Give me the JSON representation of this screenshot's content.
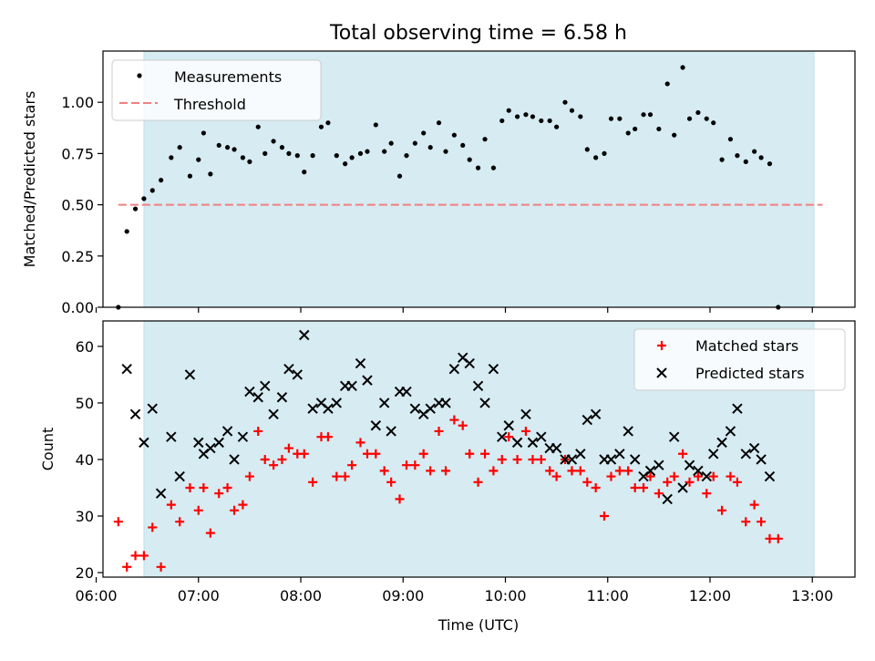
{
  "figure": {
    "title": "Total observing time = 6.58 h",
    "xlabel": "Time (UTC)"
  },
  "colors": {
    "shade": "#add8e6",
    "measurement": "#000000",
    "threshold": "#f08080",
    "matched": "#ff0000",
    "predicted": "#000000"
  },
  "chart_data": [
    {
      "type": "scatter",
      "panel": "top",
      "ylabel": "Matched/Predicted stars",
      "xlim": [
        "06:04",
        "13:25"
      ],
      "ylim": [
        0,
        1.25
      ],
      "x_ticks": [
        "06:00",
        "07:00",
        "08:00",
        "09:00",
        "10:00",
        "11:00",
        "12:00",
        "13:00"
      ],
      "y_ticks": [
        "0.00",
        "0.25",
        "0.50",
        "0.75",
        "1.00"
      ],
      "shaded_span": [
        "06:28",
        "13:01"
      ],
      "legend": {
        "placement": "top-left",
        "entries": [
          "Measurements",
          "Threshold"
        ]
      },
      "threshold": {
        "name": "Threshold",
        "y": 0.5,
        "x_range": [
          "06:13",
          "13:06"
        ]
      },
      "series": [
        {
          "name": "Measurements",
          "marker": "dot",
          "points": [
            [
              "06:13",
              0.0
            ],
            [
              "06:18",
              0.37
            ],
            [
              "06:23",
              0.48
            ],
            [
              "06:28",
              0.53
            ],
            [
              "06:33",
              0.57
            ],
            [
              "06:38",
              0.62
            ],
            [
              "06:44",
              0.73
            ],
            [
              "06:49",
              0.78
            ],
            [
              "06:55",
              0.64
            ],
            [
              "07:00",
              0.72
            ],
            [
              "07:03",
              0.85
            ],
            [
              "07:07",
              0.65
            ],
            [
              "07:12",
              0.79
            ],
            [
              "07:17",
              0.78
            ],
            [
              "07:21",
              0.77
            ],
            [
              "07:26",
              0.73
            ],
            [
              "07:30",
              0.71
            ],
            [
              "07:35",
              0.88
            ],
            [
              "07:39",
              0.75
            ],
            [
              "07:44",
              0.81
            ],
            [
              "07:49",
              0.78
            ],
            [
              "07:53",
              0.75
            ],
            [
              "07:58",
              0.74
            ],
            [
              "08:02",
              0.66
            ],
            [
              "08:07",
              0.74
            ],
            [
              "08:12",
              0.88
            ],
            [
              "08:16",
              0.9
            ],
            [
              "08:21",
              0.74
            ],
            [
              "08:26",
              0.7
            ],
            [
              "08:30",
              0.73
            ],
            [
              "08:35",
              0.75
            ],
            [
              "08:39",
              0.76
            ],
            [
              "08:44",
              0.89
            ],
            [
              "08:49",
              0.76
            ],
            [
              "08:53",
              0.8
            ],
            [
              "08:58",
              0.64
            ],
            [
              "09:02",
              0.74
            ],
            [
              "09:07",
              0.8
            ],
            [
              "09:12",
              0.85
            ],
            [
              "09:16",
              0.78
            ],
            [
              "09:21",
              0.9
            ],
            [
              "09:25",
              0.76
            ],
            [
              "09:30",
              0.84
            ],
            [
              "09:35",
              0.79
            ],
            [
              "09:39",
              0.72
            ],
            [
              "09:44",
              0.68
            ],
            [
              "09:48",
              0.82
            ],
            [
              "09:53",
              0.68
            ],
            [
              "09:58",
              0.91
            ],
            [
              "10:02",
              0.96
            ],
            [
              "10:07",
              0.93
            ],
            [
              "10:12",
              0.94
            ],
            [
              "10:16",
              0.93
            ],
            [
              "10:21",
              0.91
            ],
            [
              "10:26",
              0.91
            ],
            [
              "10:30",
              0.88
            ],
            [
              "10:35",
              1.0
            ],
            [
              "10:39",
              0.96
            ],
            [
              "10:44",
              0.93
            ],
            [
              "10:48",
              0.77
            ],
            [
              "10:53",
              0.73
            ],
            [
              "10:58",
              0.75
            ],
            [
              "11:02",
              0.92
            ],
            [
              "11:07",
              0.92
            ],
            [
              "11:12",
              0.85
            ],
            [
              "11:16",
              0.87
            ],
            [
              "11:21",
              0.94
            ],
            [
              "11:25",
              0.94
            ],
            [
              "11:30",
              0.87
            ],
            [
              "11:35",
              1.09
            ],
            [
              "11:39",
              0.84
            ],
            [
              "11:44",
              1.17
            ],
            [
              "11:48",
              0.92
            ],
            [
              "11:53",
              0.95
            ],
            [
              "11:58",
              0.92
            ],
            [
              "12:02",
              0.9
            ],
            [
              "12:07",
              0.72
            ],
            [
              "12:12",
              0.82
            ],
            [
              "12:16",
              0.74
            ],
            [
              "12:21",
              0.71
            ],
            [
              "12:26",
              0.76
            ],
            [
              "12:30",
              0.73
            ],
            [
              "12:35",
              0.7
            ],
            [
              "12:40",
              0.0
            ]
          ]
        }
      ]
    },
    {
      "type": "scatter",
      "panel": "bottom",
      "ylabel": "Count",
      "xlim": [
        "06:04",
        "13:25"
      ],
      "ylim": [
        19.2,
        64.5
      ],
      "x_ticks": [
        "06:00",
        "07:00",
        "08:00",
        "09:00",
        "10:00",
        "11:00",
        "12:00",
        "13:00"
      ],
      "y_ticks": [
        "20",
        "30",
        "40",
        "50",
        "60"
      ],
      "shaded_span": [
        "06:28",
        "13:01"
      ],
      "legend": {
        "placement": "top-right",
        "entries": [
          "Matched stars",
          "Predicted stars"
        ]
      },
      "series": [
        {
          "name": "Matched stars",
          "marker": "plus",
          "points": [
            [
              "06:13",
              29
            ],
            [
              "06:18",
              21
            ],
            [
              "06:23",
              23
            ],
            [
              "06:28",
              23
            ],
            [
              "06:33",
              28
            ],
            [
              "06:38",
              21
            ],
            [
              "06:44",
              32
            ],
            [
              "06:49",
              29
            ],
            [
              "06:55",
              35
            ],
            [
              "07:00",
              31
            ],
            [
              "07:03",
              35
            ],
            [
              "07:07",
              27
            ],
            [
              "07:12",
              34
            ],
            [
              "07:17",
              35
            ],
            [
              "07:21",
              31
            ],
            [
              "07:26",
              32
            ],
            [
              "07:30",
              37
            ],
            [
              "07:35",
              45
            ],
            [
              "07:39",
              40
            ],
            [
              "07:44",
              39
            ],
            [
              "07:49",
              40
            ],
            [
              "07:53",
              42
            ],
            [
              "07:58",
              41
            ],
            [
              "08:02",
              41
            ],
            [
              "08:07",
              36
            ],
            [
              "08:12",
              44
            ],
            [
              "08:16",
              44
            ],
            [
              "08:21",
              37
            ],
            [
              "08:26",
              37
            ],
            [
              "08:30",
              39
            ],
            [
              "08:35",
              43
            ],
            [
              "08:39",
              41
            ],
            [
              "08:44",
              41
            ],
            [
              "08:49",
              38
            ],
            [
              "08:53",
              36
            ],
            [
              "08:58",
              33
            ],
            [
              "09:02",
              39
            ],
            [
              "09:07",
              39
            ],
            [
              "09:12",
              41
            ],
            [
              "09:16",
              38
            ],
            [
              "09:21",
              45
            ],
            [
              "09:25",
              38
            ],
            [
              "09:30",
              47
            ],
            [
              "09:35",
              46
            ],
            [
              "09:39",
              41
            ],
            [
              "09:44",
              36
            ],
            [
              "09:48",
              41
            ],
            [
              "09:53",
              38
            ],
            [
              "09:58",
              40
            ],
            [
              "10:02",
              44
            ],
            [
              "10:07",
              40
            ],
            [
              "10:12",
              45
            ],
            [
              "10:16",
              40
            ],
            [
              "10:21",
              40
            ],
            [
              "10:26",
              38
            ],
            [
              "10:30",
              37
            ],
            [
              "10:35",
              40
            ],
            [
              "10:39",
              38
            ],
            [
              "10:44",
              38
            ],
            [
              "10:48",
              36
            ],
            [
              "10:53",
              35
            ],
            [
              "10:58",
              30
            ],
            [
              "11:02",
              37
            ],
            [
              "11:07",
              38
            ],
            [
              "11:12",
              38
            ],
            [
              "11:16",
              35
            ],
            [
              "11:21",
              35
            ],
            [
              "11:25",
              37
            ],
            [
              "11:30",
              34
            ],
            [
              "11:35",
              36
            ],
            [
              "11:39",
              37
            ],
            [
              "11:44",
              41
            ],
            [
              "11:48",
              36
            ],
            [
              "11:53",
              37
            ],
            [
              "11:58",
              34
            ],
            [
              "12:02",
              37
            ],
            [
              "12:07",
              31
            ],
            [
              "12:12",
              37
            ],
            [
              "12:16",
              36
            ],
            [
              "12:21",
              29
            ],
            [
              "12:26",
              32
            ],
            [
              "12:30",
              29
            ],
            [
              "12:35",
              26
            ],
            [
              "12:40",
              26
            ]
          ]
        },
        {
          "name": "Predicted stars",
          "marker": "x",
          "points": [
            [
              "06:18",
              56
            ],
            [
              "06:23",
              48
            ],
            [
              "06:28",
              43
            ],
            [
              "06:33",
              49
            ],
            [
              "06:38",
              34
            ],
            [
              "06:44",
              44
            ],
            [
              "06:49",
              37
            ],
            [
              "06:55",
              55
            ],
            [
              "07:00",
              43
            ],
            [
              "07:03",
              41
            ],
            [
              "07:07",
              42
            ],
            [
              "07:12",
              43
            ],
            [
              "07:17",
              45
            ],
            [
              "07:21",
              40
            ],
            [
              "07:26",
              44
            ],
            [
              "07:30",
              52
            ],
            [
              "07:35",
              51
            ],
            [
              "07:39",
              53
            ],
            [
              "07:44",
              48
            ],
            [
              "07:49",
              51
            ],
            [
              "07:53",
              56
            ],
            [
              "07:58",
              55
            ],
            [
              "08:02",
              62
            ],
            [
              "08:07",
              49
            ],
            [
              "08:12",
              50
            ],
            [
              "08:16",
              49
            ],
            [
              "08:21",
              50
            ],
            [
              "08:26",
              53
            ],
            [
              "08:30",
              53
            ],
            [
              "08:35",
              57
            ],
            [
              "08:39",
              54
            ],
            [
              "08:44",
              46
            ],
            [
              "08:49",
              50
            ],
            [
              "08:53",
              45
            ],
            [
              "08:58",
              52
            ],
            [
              "09:02",
              52
            ],
            [
              "09:07",
              49
            ],
            [
              "09:12",
              48
            ],
            [
              "09:16",
              49
            ],
            [
              "09:21",
              50
            ],
            [
              "09:25",
              50
            ],
            [
              "09:30",
              56
            ],
            [
              "09:35",
              58
            ],
            [
              "09:39",
              57
            ],
            [
              "09:44",
              53
            ],
            [
              "09:48",
              50
            ],
            [
              "09:53",
              56
            ],
            [
              "09:58",
              44
            ],
            [
              "10:02",
              46
            ],
            [
              "10:07",
              43
            ],
            [
              "10:12",
              48
            ],
            [
              "10:16",
              43
            ],
            [
              "10:21",
              44
            ],
            [
              "10:26",
              42
            ],
            [
              "10:30",
              42
            ],
            [
              "10:35",
              40
            ],
            [
              "10:39",
              40
            ],
            [
              "10:44",
              41
            ],
            [
              "10:48",
              47
            ],
            [
              "10:53",
              48
            ],
            [
              "10:58",
              40
            ],
            [
              "11:02",
              40
            ],
            [
              "11:07",
              41
            ],
            [
              "11:12",
              45
            ],
            [
              "11:16",
              40
            ],
            [
              "11:21",
              37
            ],
            [
              "11:25",
              38
            ],
            [
              "11:30",
              39
            ],
            [
              "11:35",
              33
            ],
            [
              "11:39",
              44
            ],
            [
              "11:44",
              35
            ],
            [
              "11:48",
              39
            ],
            [
              "11:53",
              38
            ],
            [
              "11:58",
              37
            ],
            [
              "12:02",
              41
            ],
            [
              "12:07",
              43
            ],
            [
              "12:12",
              45
            ],
            [
              "12:16",
              49
            ],
            [
              "12:21",
              41
            ],
            [
              "12:26",
              42
            ],
            [
              "12:30",
              40
            ],
            [
              "12:35",
              37
            ]
          ]
        }
      ]
    }
  ]
}
